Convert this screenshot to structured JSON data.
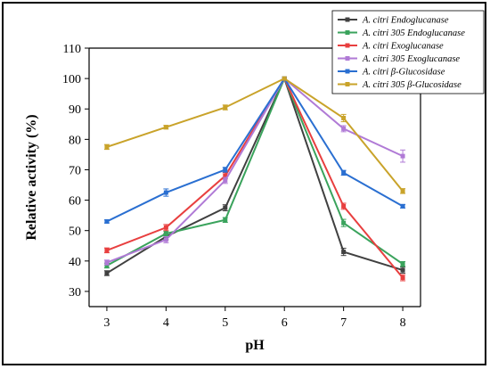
{
  "chart_data": {
    "type": "line",
    "title": "",
    "xlabel": "pH",
    "ylabel": "Relative activity (%)",
    "x": [
      3,
      4,
      5,
      6,
      7,
      8
    ],
    "xlim": [
      2.7,
      8.3
    ],
    "ylim": [
      25,
      110
    ],
    "yticks": [
      30,
      40,
      50,
      60,
      70,
      80,
      90,
      100,
      110
    ],
    "grid": false,
    "legend_position": "top-right",
    "series": [
      {
        "name": "A. citri Endoglucanase",
        "color": "#404040",
        "values": [
          36,
          48,
          57.5,
          100,
          43,
          37
        ],
        "errors": [
          0.8,
          1.0,
          1.0,
          0,
          1.2,
          1.0
        ]
      },
      {
        "name": "A. citri 305 Endoglucanase",
        "color": "#3aa35c",
        "values": [
          38.5,
          49,
          53.5,
          100,
          52.5,
          39
        ],
        "errors": [
          0.8,
          0.8,
          0.8,
          0,
          1.2,
          0.8
        ]
      },
      {
        "name": "A. citri Exoglucanase",
        "color": "#e83f3f",
        "values": [
          43.5,
          51,
          68,
          100,
          58,
          34.5
        ],
        "errors": [
          0.8,
          1.0,
          1.0,
          0,
          1.0,
          1.0
        ]
      },
      {
        "name": "A. citri 305 Exoglucanase",
        "color": "#b07ad6",
        "values": [
          39.5,
          47,
          66.5,
          100,
          83.5,
          74.5
        ],
        "errors": [
          0.8,
          1.0,
          1.0,
          0,
          1.0,
          2.0
        ]
      },
      {
        "name": "A. citri β-Glucosidase",
        "color": "#2a6fd1",
        "values": [
          53,
          62.5,
          70,
          100,
          69,
          58
        ],
        "errors": [
          0.5,
          1.2,
          0.8,
          0,
          0.8,
          0.6
        ]
      },
      {
        "name": "A. citri 305 β-Glucosidase",
        "color": "#c9a32a",
        "values": [
          77.5,
          84,
          90.5,
          100,
          87,
          63
        ],
        "errors": [
          0.8,
          0.6,
          0.8,
          0,
          1.2,
          0.8
        ]
      }
    ]
  }
}
